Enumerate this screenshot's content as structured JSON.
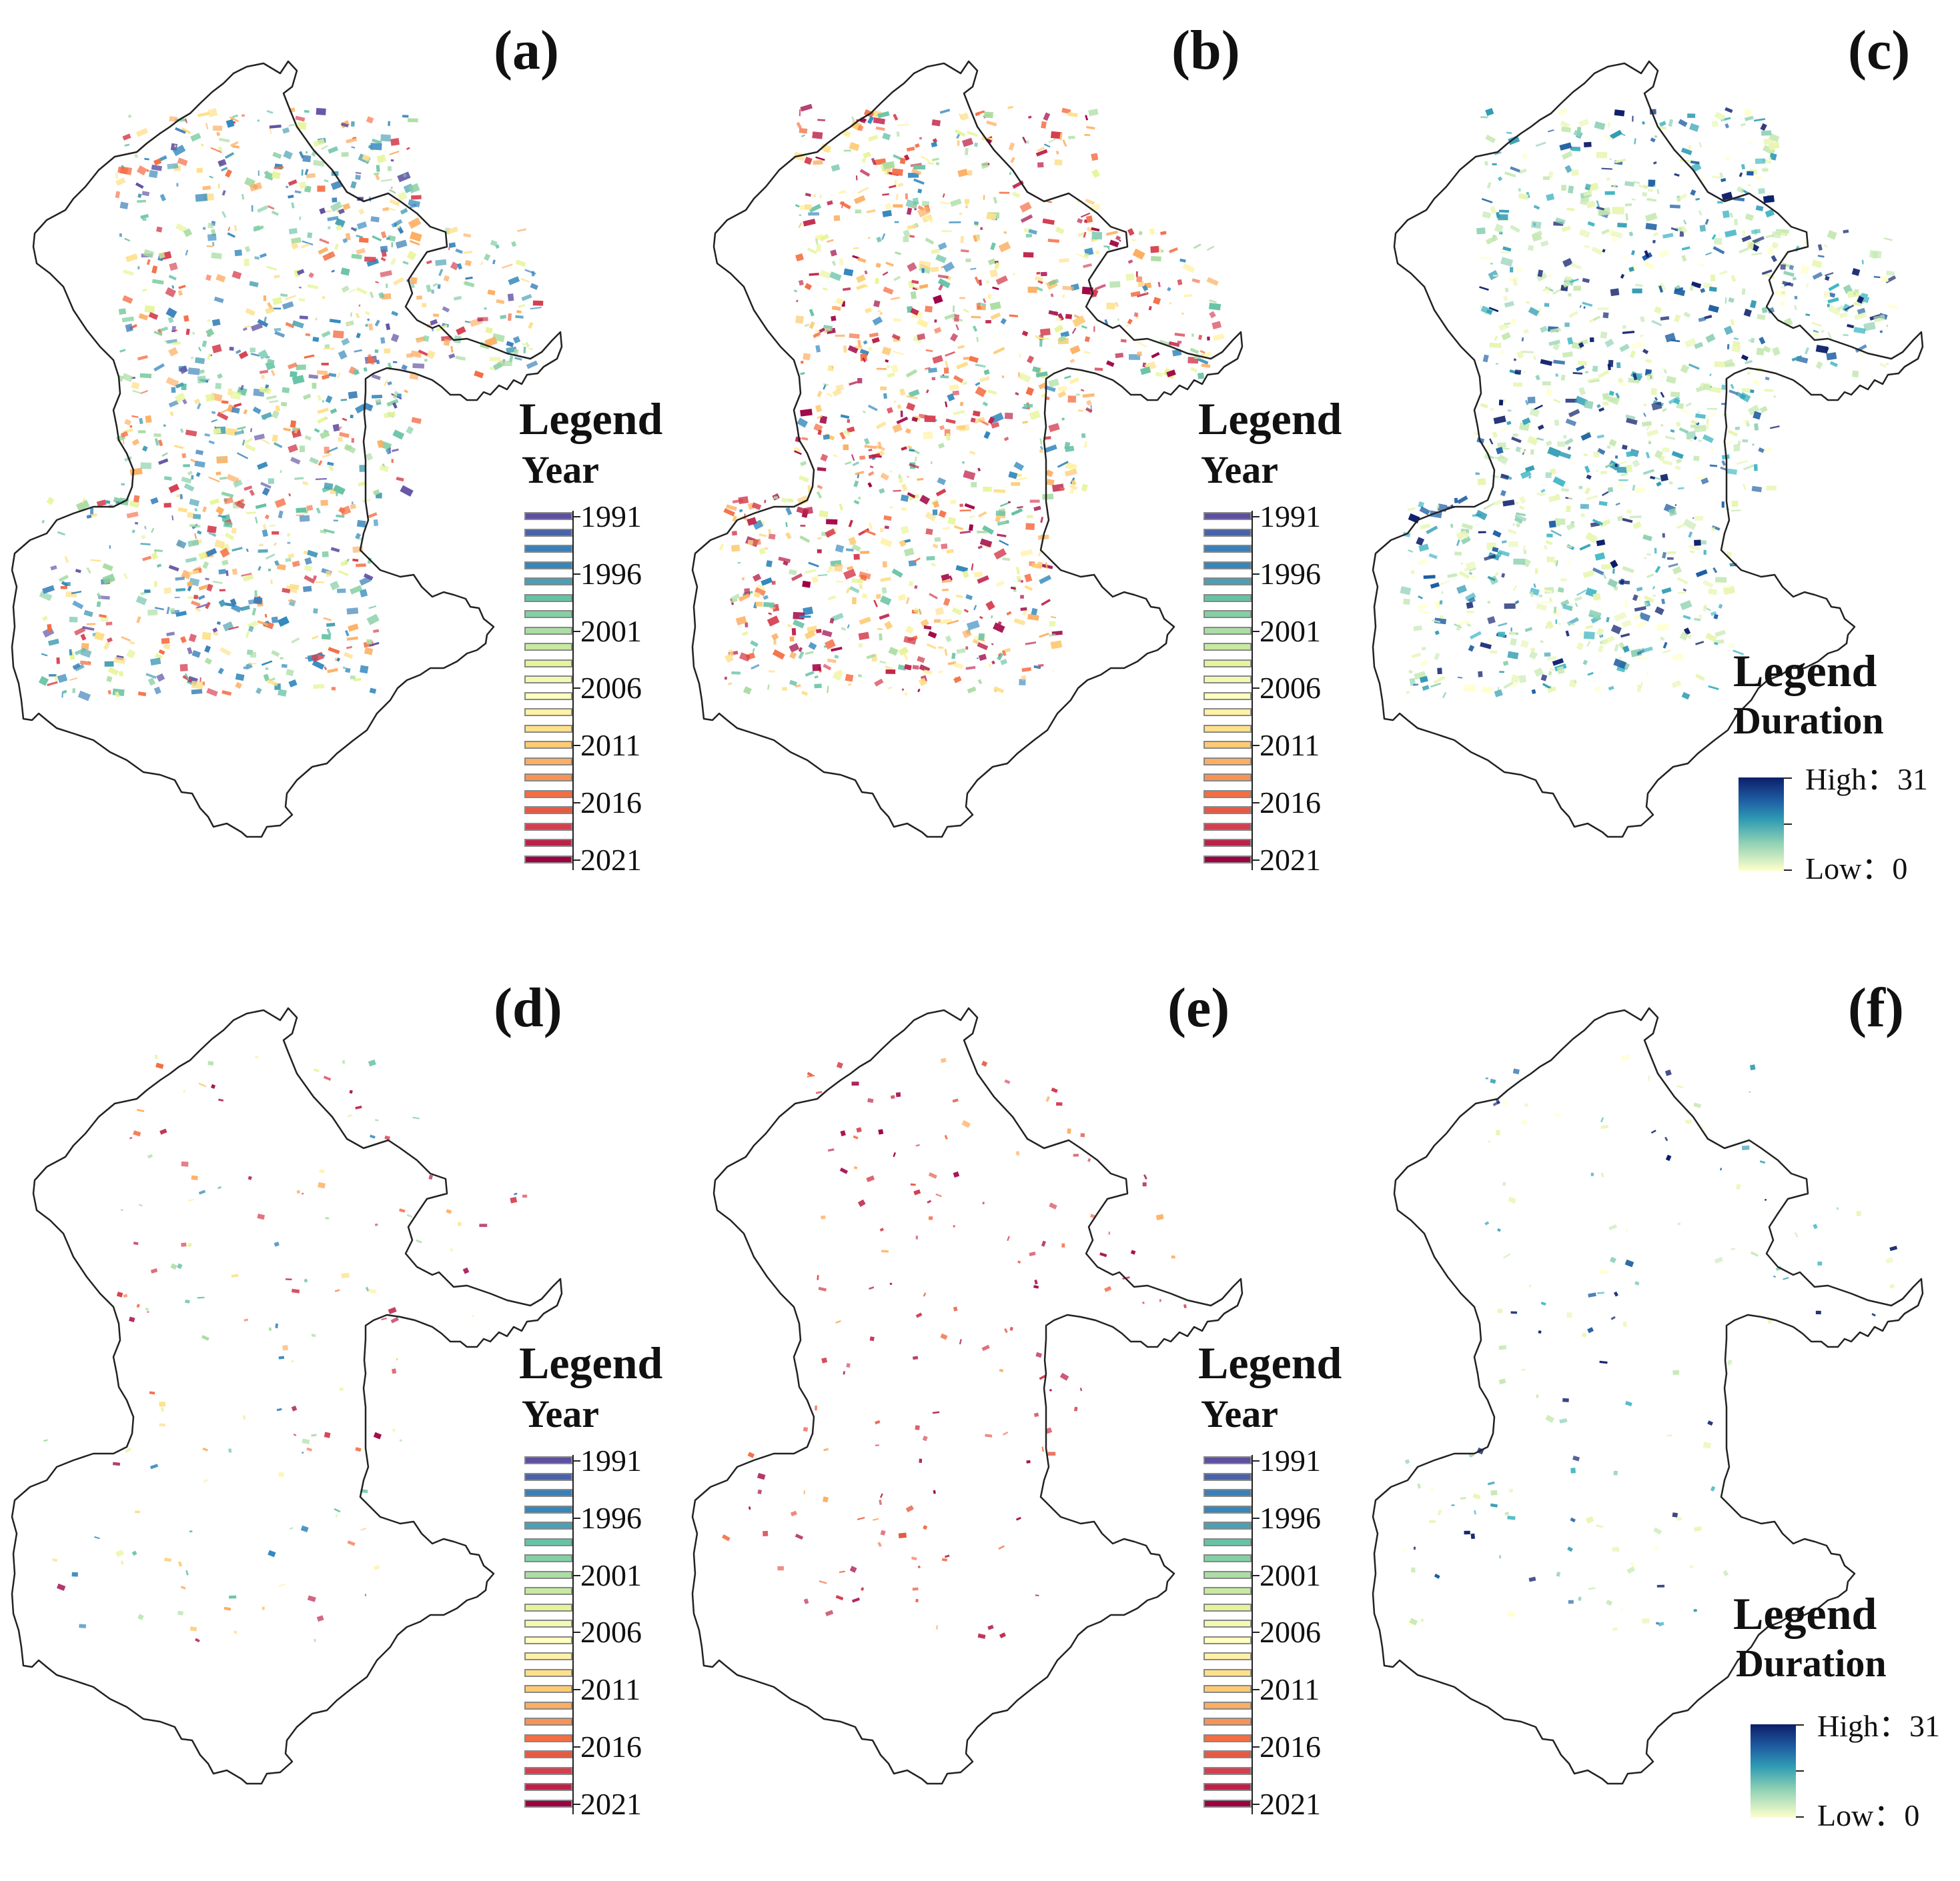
{
  "figure": {
    "panels": [
      {
        "id": "a",
        "label": "(a)",
        "legend_type": "year",
        "density": "high",
        "palette": "spectral"
      },
      {
        "id": "b",
        "label": "(b)",
        "legend_type": "year",
        "density": "high",
        "palette": "spectral_late"
      },
      {
        "id": "c",
        "label": "(c)",
        "legend_type": "duration",
        "density": "high",
        "palette": "duration"
      },
      {
        "id": "d",
        "label": "(d)",
        "legend_type": "year",
        "density": "low",
        "palette": "spectral_late"
      },
      {
        "id": "e",
        "label": "(e)",
        "legend_type": "year",
        "density": "low",
        "palette": "crimson"
      },
      {
        "id": "f",
        "label": "(f)",
        "legend_type": "duration",
        "density": "low",
        "palette": "duration"
      }
    ]
  },
  "legend_year": {
    "title": "Legend",
    "subtitle": "Year",
    "tick_labels": [
      "1991",
      "1996",
      "2001",
      "2006",
      "2011",
      "2016",
      "2021"
    ],
    "colors": [
      "#5e4fa2",
      "#4a62aa",
      "#3a7fb8",
      "#3288bd",
      "#4aa0b5",
      "#66c2a5",
      "#85cfa5",
      "#abdda4",
      "#c7e9a0",
      "#e6f598",
      "#f2f9b0",
      "#ffffbf",
      "#fff2a6",
      "#fee08b",
      "#fdcb74",
      "#fdae61",
      "#f99355",
      "#f46d43",
      "#e55a44",
      "#d53e4f",
      "#bd2148",
      "#9e0142"
    ]
  },
  "legend_duration": {
    "title": "Legend",
    "subtitle": "Duration",
    "high_label": "High：31",
    "low_label": "Low：0",
    "colors": [
      "#0c1e6a",
      "#1f5fa3",
      "#2f9bb3",
      "#8fd1b4",
      "#ffffcc"
    ]
  }
}
